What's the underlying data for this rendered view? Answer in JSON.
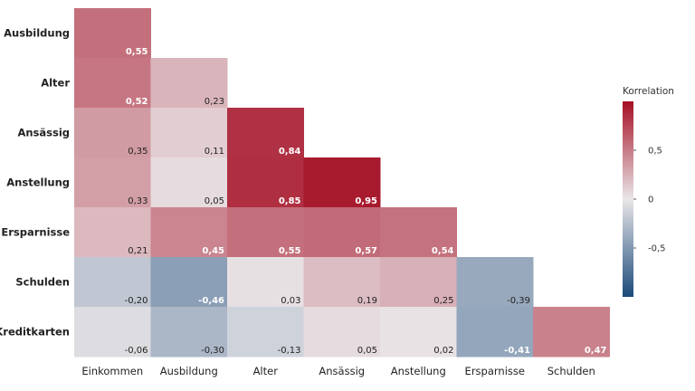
{
  "chart_data": {
    "type": "heatmap",
    "rows": [
      "Ausbildung",
      "Alter",
      "Ansässig",
      "Anstellung",
      "Ersparnisse",
      "Schulden",
      "Kreditkarten"
    ],
    "columns": [
      "Einkommen",
      "Ausbildung",
      "Alter",
      "Ansässig",
      "Anstellung",
      "Ersparnisse",
      "Schulden"
    ],
    "values": [
      [
        0.55
      ],
      [
        0.52,
        0.23
      ],
      [
        0.35,
        0.11,
        0.84
      ],
      [
        0.33,
        0.05,
        0.85,
        0.95
      ],
      [
        0.21,
        0.45,
        0.55,
        0.57,
        0.54
      ],
      [
        -0.2,
        -0.46,
        0.03,
        0.19,
        0.25,
        -0.39
      ],
      [
        -0.06,
        -0.3,
        -0.13,
        0.05,
        0.02,
        -0.41,
        0.47
      ]
    ],
    "value_labels": [
      [
        "0,55"
      ],
      [
        "0,52",
        "0,23"
      ],
      [
        "0,35",
        "0,11",
        "0,84"
      ],
      [
        "0,33",
        "0,05",
        "0,85",
        "0,95"
      ],
      [
        "0,21",
        "0,45",
        "0,55",
        "0,57",
        "0,54"
      ],
      [
        "-0,20",
        "-0,46",
        "0,03",
        "0,19",
        "0,25",
        "-0,39"
      ],
      [
        "-0,06",
        "-0,30",
        "-0,13",
        "0,05",
        "0,02",
        "-0,41",
        "0,47"
      ]
    ],
    "legend": {
      "title": "Korrelation",
      "range": [
        -1,
        1
      ],
      "ticks": [
        0.5,
        0,
        -0.5
      ],
      "tick_labels": [
        "0,5",
        "0",
        "-0,5"
      ],
      "placement": "right"
    },
    "colors": {
      "negative": "#1a4a7a",
      "neutral": "#e9e6e8",
      "positive": "#a50f24"
    }
  }
}
